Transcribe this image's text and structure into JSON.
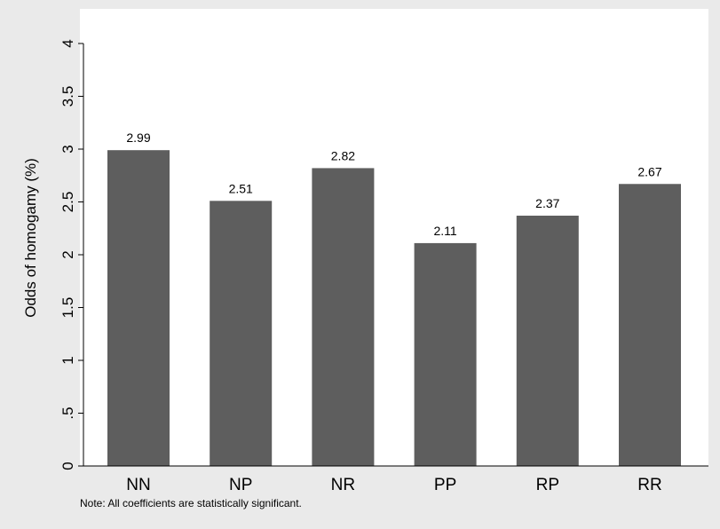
{
  "chart_data": {
    "type": "bar",
    "categories": [
      "NN",
      "NP",
      "NR",
      "PP",
      "RP",
      "RR"
    ],
    "values": [
      2.99,
      2.51,
      2.82,
      2.11,
      2.37,
      2.67
    ],
    "data_labels": [
      "2.99",
      "2.51",
      "2.82",
      "2.11",
      "2.37",
      "2.67"
    ],
    "title": "",
    "xlabel": "",
    "ylabel": "Odds of homogamy (%)",
    "ylim": [
      0,
      4
    ],
    "yticks": [
      0,
      0.5,
      1,
      1.5,
      2,
      2.5,
      3,
      3.5,
      4
    ],
    "ytick_labels": [
      "0",
      ".5",
      "1",
      "1.5",
      "2",
      "2.5",
      "3",
      "3.5",
      "4"
    ],
    "grid": false,
    "legend": "none",
    "note": "Note: All coefficients are statistically significant.",
    "colors": {
      "bar": "#5e5e5e",
      "plot_background": "#ffffff",
      "outer_background": "#eaeaea",
      "axis": "#000000"
    }
  }
}
